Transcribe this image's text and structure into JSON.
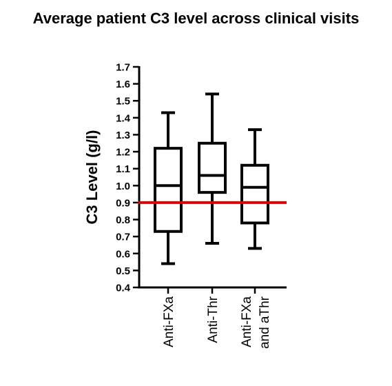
{
  "chart_data": {
    "type": "box",
    "title": "Average patient C3 level across clinical visits",
    "ylabel": "C3  Level (g/l)",
    "xlabel": "",
    "ylim": [
      0.4,
      1.7
    ],
    "yticks": [
      "0.4",
      "0.5",
      "0.6",
      "0.7",
      "0.8",
      "0.9",
      "1.0",
      "1.1",
      "1.2",
      "1.3",
      "1.4",
      "1.5",
      "1.6",
      "1.7"
    ],
    "categories": [
      [
        "Anti-FXa"
      ],
      [
        "Anti-Thr"
      ],
      [
        "Anti-FXa",
        "and aThr"
      ]
    ],
    "boxes": [
      {
        "min": 0.54,
        "q1": 0.73,
        "median": 1.0,
        "q3": 1.22,
        "max": 1.43
      },
      {
        "min": 0.66,
        "q1": 0.96,
        "median": 1.06,
        "q3": 1.25,
        "max": 1.54
      },
      {
        "min": 0.63,
        "q1": 0.78,
        "median": 0.99,
        "q3": 1.12,
        "max": 1.33
      }
    ],
    "reference_line": {
      "y": 0.9,
      "color": "#e00000"
    },
    "grid": false
  }
}
